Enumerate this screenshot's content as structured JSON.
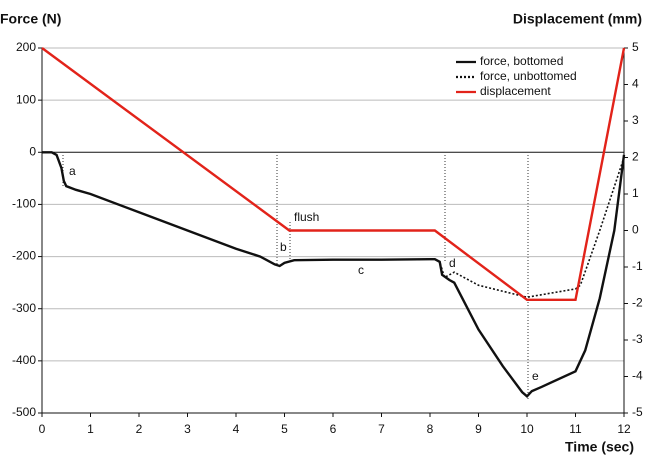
{
  "chart_data": {
    "type": "line",
    "y_label": "Force (N)",
    "y2_label": "Displacement (mm)",
    "x_label": "Time (sec)",
    "xlim": [
      0,
      12
    ],
    "xticks": [
      0,
      1,
      2,
      3,
      4,
      5,
      6,
      7,
      8,
      9,
      10,
      11,
      12
    ],
    "ylim": [
      -500,
      200
    ],
    "yticks": [
      -500,
      -400,
      -300,
      -200,
      -100,
      0,
      100,
      200
    ],
    "y2lim": [
      -5,
      5
    ],
    "y2ticks": [
      -5,
      -4,
      -3,
      -2,
      -1,
      0,
      1,
      2,
      3,
      4,
      5
    ],
    "grid": true,
    "legend": "upper right",
    "series": [
      {
        "name": "force, bottomed",
        "color": "#111111",
        "dash": "solid",
        "x": [
          0,
          0.2,
          0.3,
          0.4,
          0.45,
          0.5,
          0.7,
          1,
          2,
          3,
          4,
          4.5,
          4.8,
          4.9,
          5.0,
          5.2,
          6,
          7,
          8,
          8.1,
          8.2,
          8.25,
          8.4,
          8.5,
          9,
          9.5,
          9.9,
          10,
          10.1,
          10.3,
          11,
          11.2,
          11.5,
          11.8,
          12
        ],
        "values": [
          0,
          0,
          -5,
          -30,
          -55,
          -65,
          -72,
          -80,
          -115,
          -150,
          -185,
          -200,
          -215,
          -218,
          -212,
          -207,
          -206,
          -206,
          -205,
          -205,
          -210,
          -235,
          -245,
          -250,
          -340,
          -410,
          -460,
          -468,
          -458,
          -450,
          -420,
          -380,
          -280,
          -150,
          -5
        ]
      },
      {
        "name": "force, unbottomed",
        "color": "#111111",
        "dash": "dotted",
        "x": [
          0,
          0.2,
          0.3,
          0.4,
          0.45,
          0.5,
          0.7,
          1,
          2,
          3,
          4,
          4.5,
          4.8,
          4.9,
          5.0,
          5.2,
          6,
          7,
          8,
          8.1,
          8.2,
          8.3,
          8.5,
          9,
          10,
          10.5,
          11,
          11.1,
          11.5,
          12
        ],
        "values": [
          0,
          0,
          -5,
          -30,
          -55,
          -65,
          -72,
          -80,
          -115,
          -150,
          -185,
          -200,
          -215,
          -218,
          -212,
          -207,
          -206,
          -206,
          -205,
          -205,
          -210,
          -240,
          -230,
          -255,
          -278,
          -270,
          -262,
          -255,
          -150,
          -10
        ]
      },
      {
        "name": "displacement",
        "color": "#e2231a",
        "dash": "solid",
        "axis": "y2",
        "x": [
          0,
          5.1,
          8.1,
          10,
          11,
          12
        ],
        "values": [
          5,
          0,
          0,
          -1.9,
          -1.9,
          5
        ]
      }
    ],
    "annotations": [
      "a",
      "b",
      "flush",
      "c",
      "d",
      "e"
    ]
  }
}
